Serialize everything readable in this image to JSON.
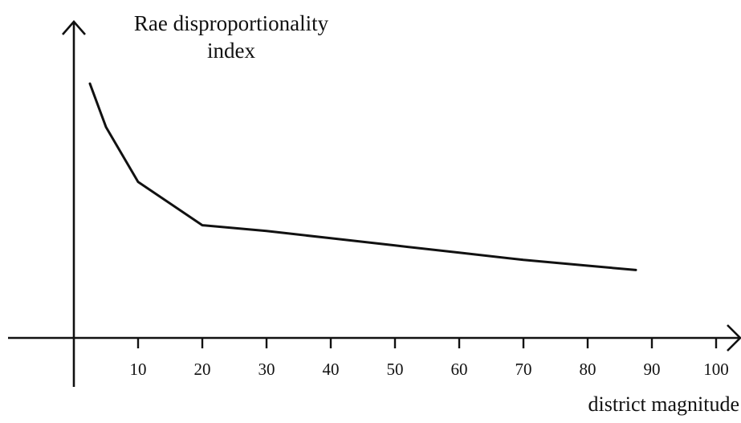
{
  "chart_data": {
    "type": "line",
    "title": "",
    "ylabel_lines": [
      "Rae disproportionality",
      "index"
    ],
    "xlabel": "district magnitude",
    "xlim": [
      0,
      100
    ],
    "xticks": [
      10,
      20,
      30,
      40,
      50,
      60,
      70,
      80,
      90,
      100
    ],
    "y_tick_labels": false,
    "grid": false,
    "series": [
      {
        "x": [
          2.5,
          5,
          10,
          20,
          30,
          40,
          50,
          60,
          70,
          80,
          87.5
        ],
        "y": [
          0.88,
          0.73,
          0.54,
          0.39,
          0.37,
          0.345,
          0.32,
          0.295,
          0.27,
          0.25,
          0.235
        ]
      }
    ],
    "line_color": "#111111"
  }
}
